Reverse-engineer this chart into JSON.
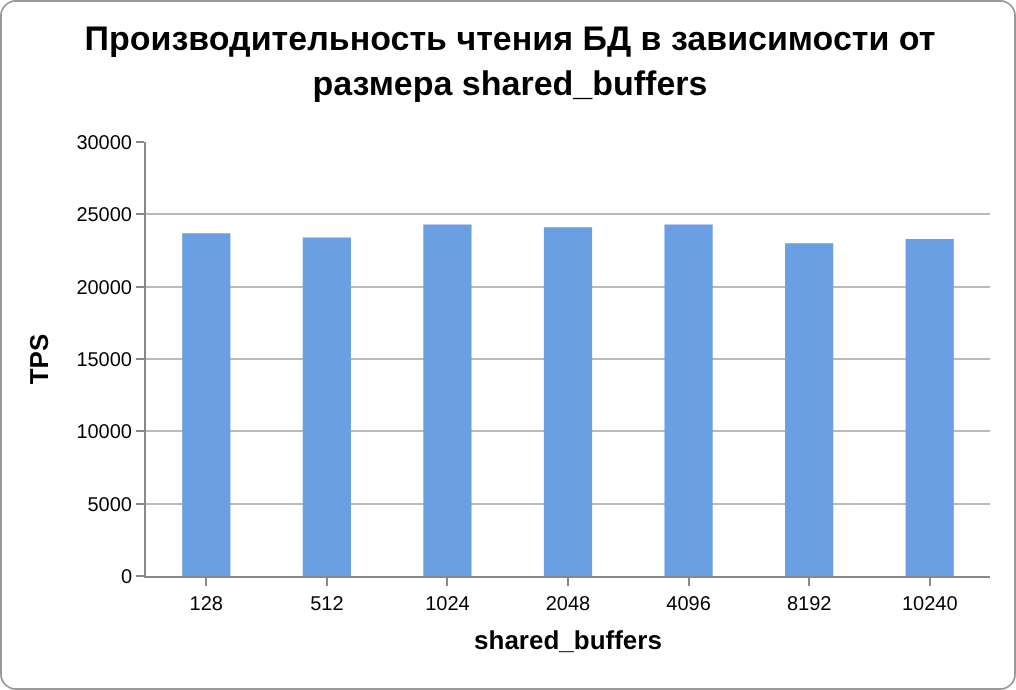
{
  "chart_data": {
    "type": "bar",
    "title": "Производительность чтения БД в зависимости от размера shared_buffers",
    "xlabel": "shared_buffers",
    "ylabel": "TPS",
    "categories": [
      "128",
      "512",
      "1024",
      "2048",
      "4096",
      "8192",
      "10240"
    ],
    "values": [
      23700,
      23400,
      24300,
      24100,
      24300,
      23000,
      23300
    ],
    "color": "#6b9fe4",
    "ylim": [
      0,
      30000
    ],
    "yticks": [
      0,
      5000,
      10000,
      15000,
      20000,
      25000,
      30000
    ],
    "grid": "y"
  }
}
